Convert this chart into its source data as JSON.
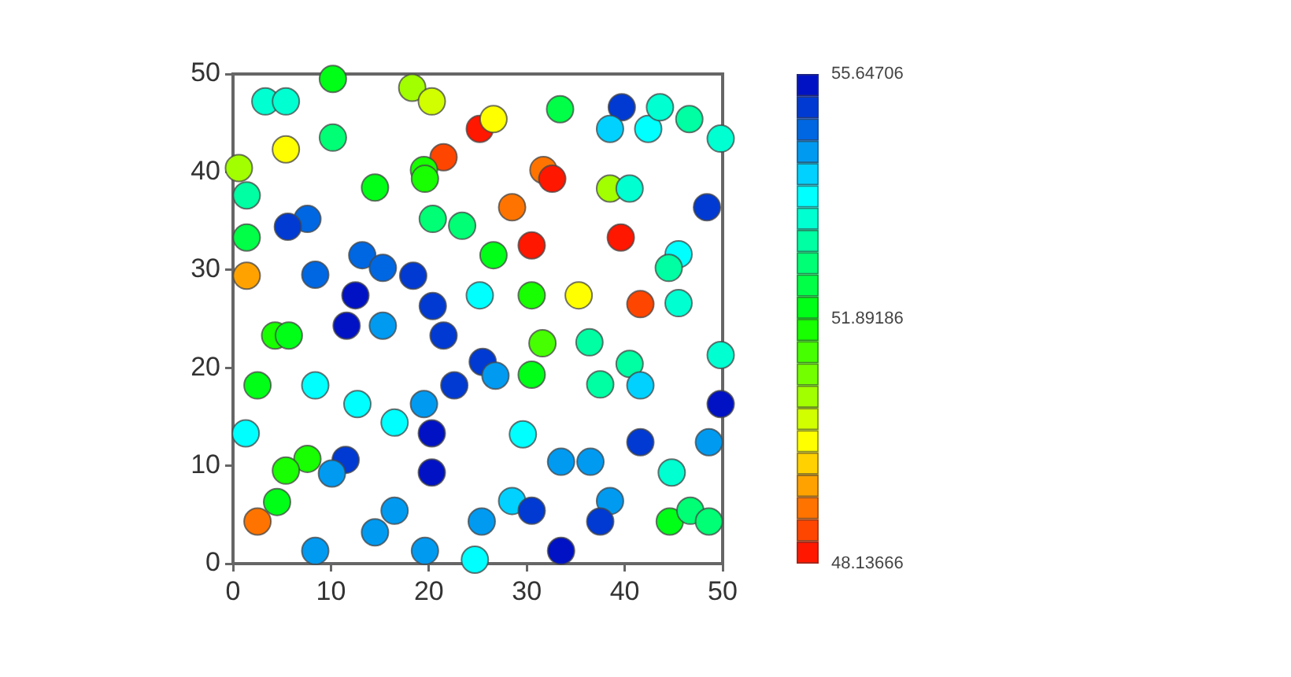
{
  "chart_data": {
    "type": "scatter",
    "marker": "circle",
    "x": [
      10.2,
      3.3,
      5.4,
      18.3,
      20.3,
      5.4,
      10.2,
      21.5,
      0.6,
      19.5,
      19.6,
      14.5,
      1.4,
      7.6,
      5.6,
      20.4,
      23.4,
      1.4,
      1.4,
      8.4,
      13.2,
      15.3,
      18.4,
      12.5,
      20.4,
      25.2,
      25.2,
      26.6,
      33.4,
      39.7,
      38.5,
      42.4,
      43.6,
      46.6,
      49.8,
      31.7,
      32.6,
      28.5,
      38.5,
      40.5,
      48.4,
      30.5,
      39.6,
      26.6,
      45.5,
      44.5,
      30.5,
      35.3,
      41.6,
      45.5,
      4.3,
      5.7,
      11.6,
      15.3,
      21.5,
      2.5,
      8.4,
      22.6,
      12.7,
      19.5,
      16.5,
      1.3,
      20.3,
      20.3,
      7.6,
      5.4,
      11.5,
      10.1,
      4.5,
      2.5,
      16.5,
      14.5,
      8.4,
      19.6,
      24.7,
      31.6,
      36.4,
      25.5,
      26.8,
      30.5,
      37.5,
      40.5,
      41.6,
      49.8,
      49.8,
      29.6,
      41.6,
      48.6,
      33.5,
      36.5,
      44.8,
      28.5,
      30.5,
      38.5,
      37.5,
      25.4,
      33.5,
      44.6,
      46.7,
      48.6
    ],
    "values": [
      49.5,
      47.2,
      47.2,
      48.6,
      47.2,
      42.3,
      43.5,
      41.5,
      40.4,
      40.2,
      39.3,
      38.4,
      37.6,
      35.2,
      34.4,
      35.2,
      34.5,
      33.3,
      29.4,
      29.5,
      31.5,
      30.2,
      29.4,
      27.4,
      26.3,
      27.4,
      44.4,
      45.4,
      46.4,
      46.6,
      44.4,
      44.4,
      46.6,
      45.4,
      43.4,
      40.2,
      39.3,
      36.4,
      38.3,
      38.3,
      36.4,
      32.5,
      33.3,
      31.5,
      31.6,
      30.2,
      27.4,
      27.4,
      26.5,
      26.6,
      23.3,
      23.3,
      24.3,
      24.3,
      23.3,
      18.2,
      18.2,
      18.2,
      16.3,
      16.3,
      14.4,
      13.3,
      13.3,
      9.3,
      10.7,
      9.5,
      10.6,
      9.2,
      6.3,
      4.3,
      5.4,
      3.2,
      1.3,
      1.3,
      0.4,
      22.5,
      22.6,
      20.6,
      19.2,
      19.3,
      18.3,
      20.4,
      18.2,
      21.3,
      16.3,
      13.2,
      12.4,
      12.4,
      10.4,
      10.4,
      9.3,
      6.4,
      5.4,
      6.4,
      4.3,
      4.3,
      1.3,
      4.3,
      5.4,
      4.3
    ],
    "cvalues": [
      51.9,
      53.3,
      53.3,
      50.6,
      50.3,
      50.0,
      52.7,
      48.8,
      50.8,
      51.7,
      51.6,
      51.9,
      53.1,
      54.9,
      55.2,
      52.8,
      52.8,
      52.5,
      49.5,
      54.7,
      54.9,
      54.9,
      55.2,
      55.5,
      55.2,
      53.9,
      48.3,
      49.9,
      52.4,
      55.3,
      54.2,
      53.8,
      53.5,
      53.0,
      53.5,
      48.9,
      48.2,
      49.1,
      50.6,
      53.3,
      55.0,
      48.1,
      48.2,
      52.0,
      53.6,
      53.0,
      51.7,
      49.9,
      48.8,
      53.3,
      51.7,
      51.9,
      55.4,
      54.5,
      55.1,
      52.2,
      53.9,
      55.0,
      53.8,
      54.4,
      53.9,
      53.8,
      55.5,
      55.6,
      51.8,
      51.8,
      55.1,
      54.5,
      52.0,
      49.1,
      54.4,
      54.5,
      54.4,
      54.5,
      53.9,
      51.4,
      53.0,
      55.3,
      54.5,
      51.9,
      53.0,
      53.1,
      54.2,
      53.5,
      55.6,
      53.8,
      55.0,
      54.5,
      54.4,
      54.5,
      53.3,
      54.2,
      55.0,
      54.3,
      55.0,
      54.4,
      55.5,
      52.2,
      52.8,
      52.7
    ],
    "xlim": [
      0,
      50
    ],
    "ylim": [
      0,
      50
    ],
    "xticks": [
      0,
      10,
      20,
      30,
      40,
      50
    ],
    "yticks": [
      0,
      10,
      20,
      30,
      40,
      50
    ],
    "clim": [
      48.13666,
      55.64706
    ],
    "cticks": [
      48.13666,
      51.89186,
      55.64706
    ]
  }
}
